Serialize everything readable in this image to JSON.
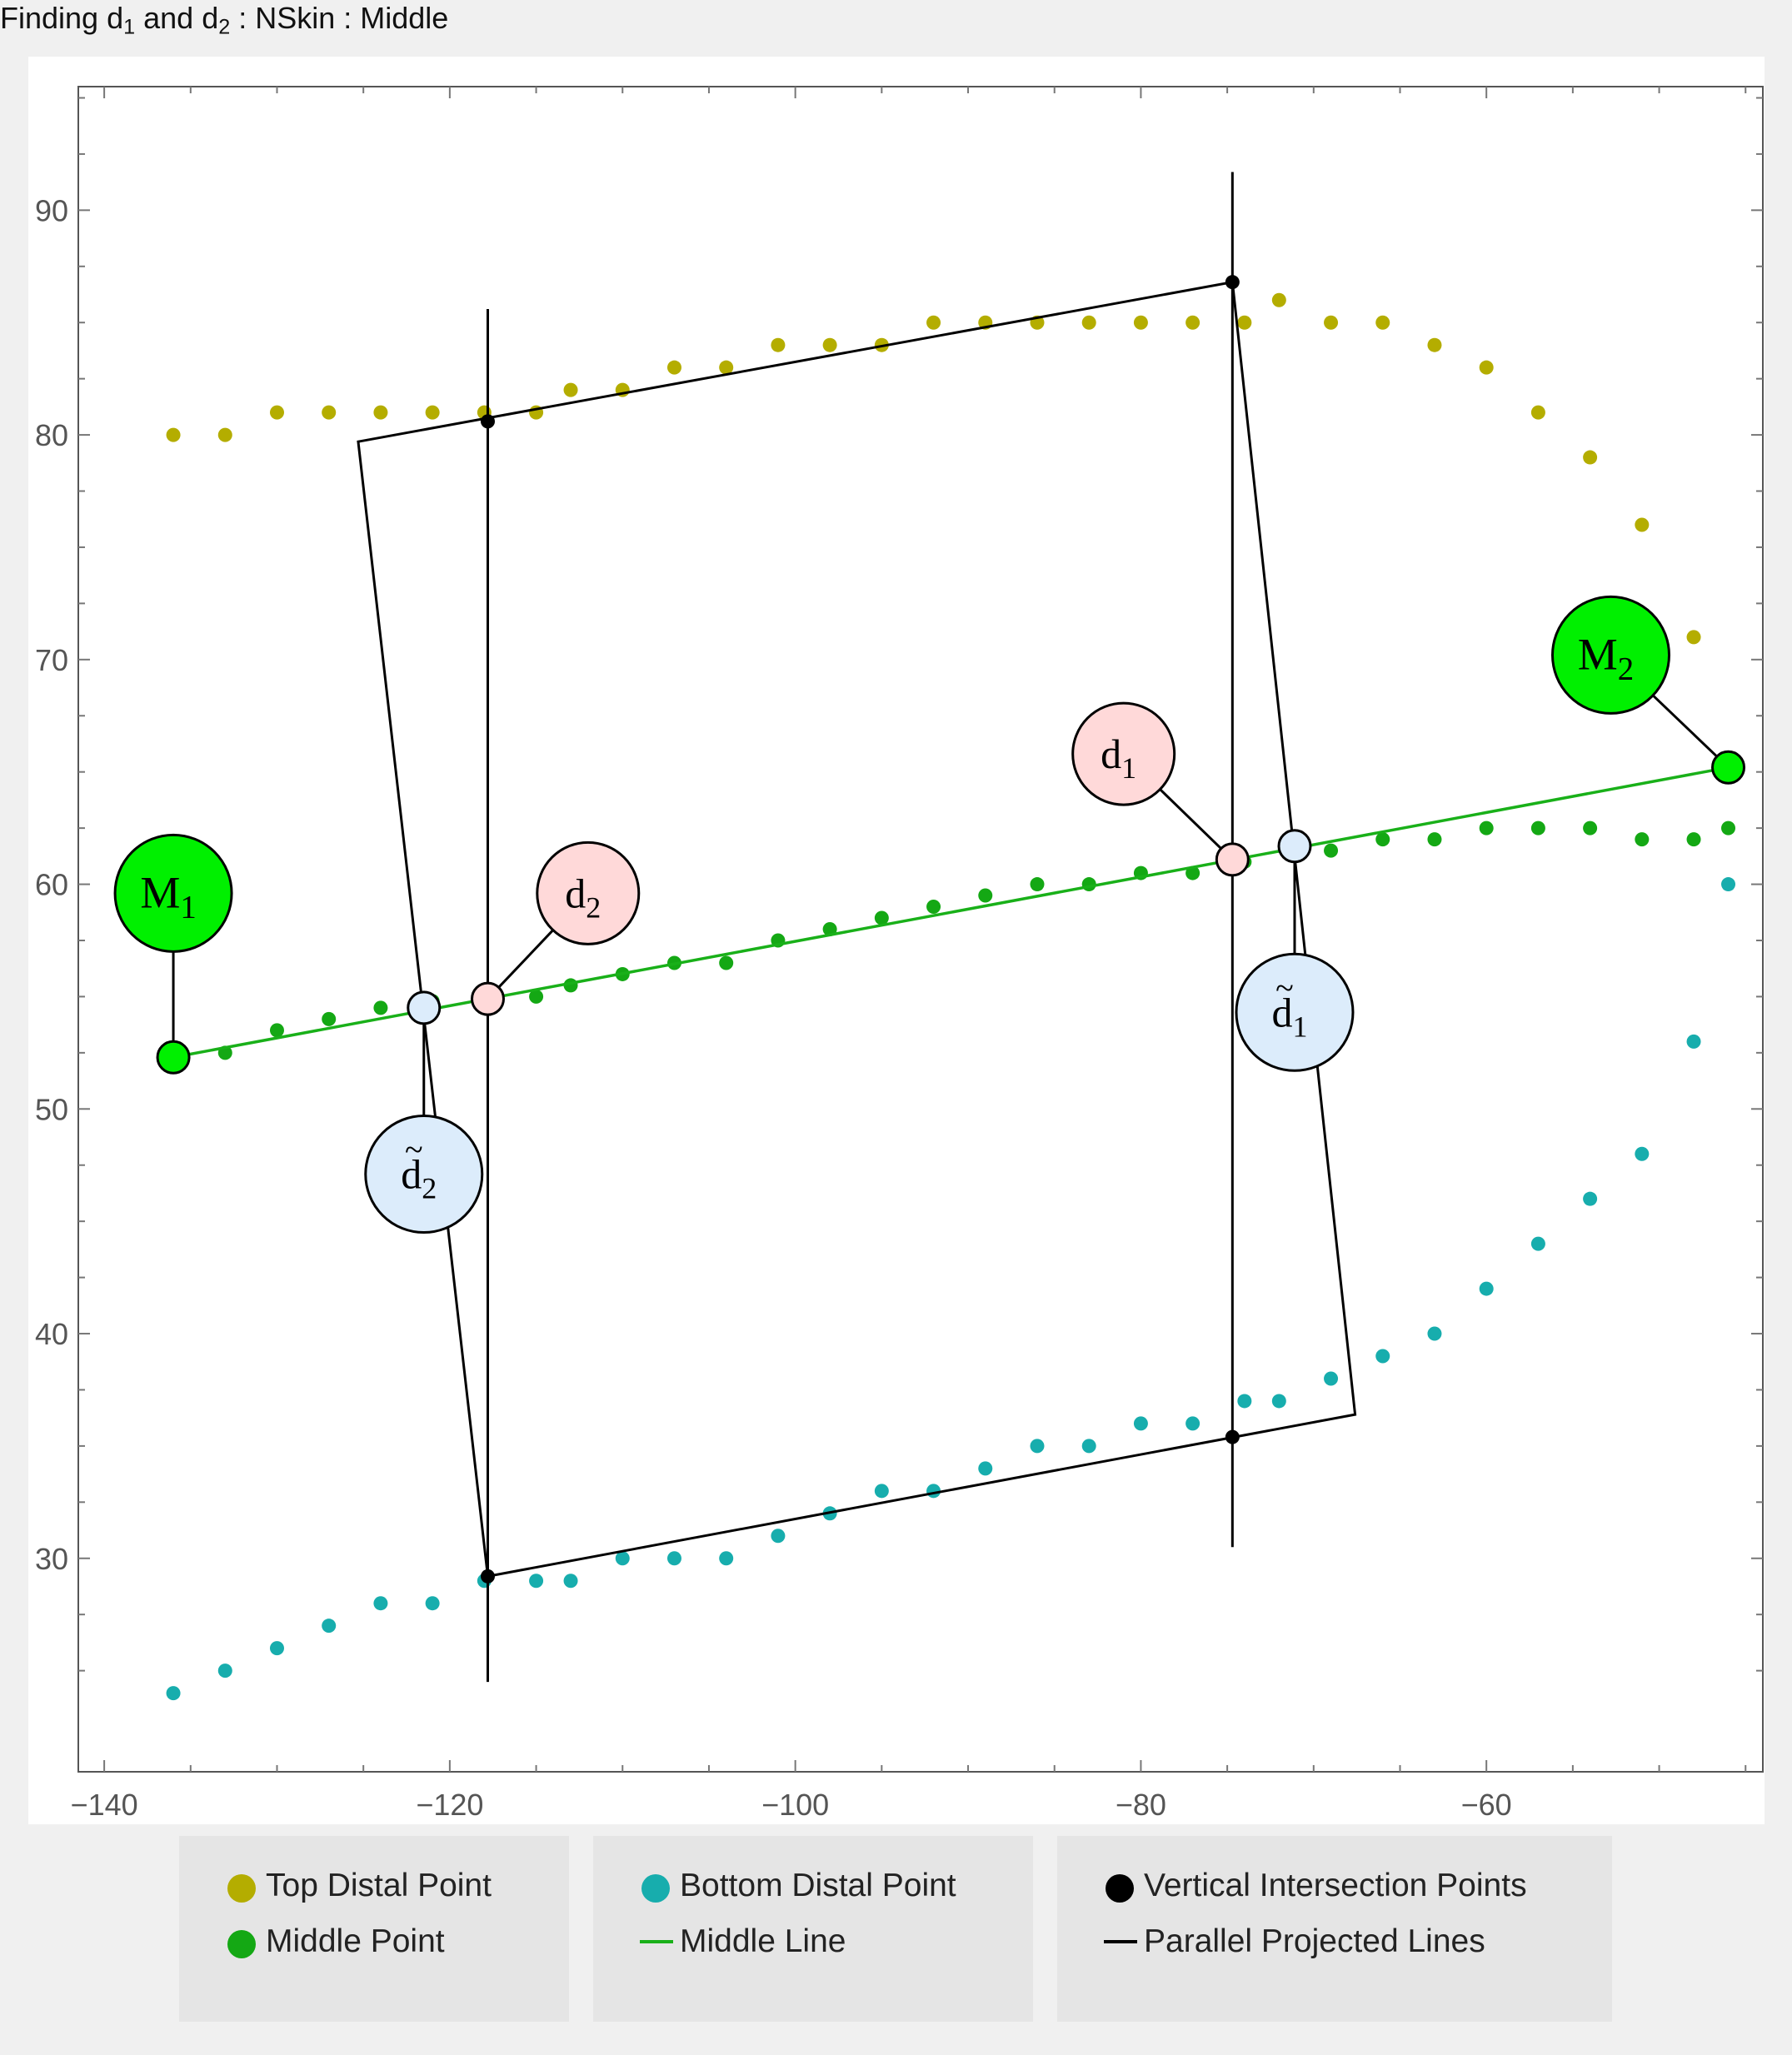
{
  "title": {
    "prefix": "Finding d",
    "sub1": "1",
    "mid": " and d",
    "sub2": "2",
    "suffix": " : NSkin : Middle"
  },
  "colors": {
    "top": "#b4ad00",
    "middle": "#14a814",
    "bottom": "#17adad",
    "vertical": "#000000",
    "middle_line": "#19b019",
    "bubble_green": "#00f000",
    "bubble_pink": "#ffd9d9",
    "bubble_blue": "#dcecfb"
  },
  "chart_data": {
    "type": "scatter",
    "xlim": [
      -141.5,
      -44
    ],
    "ylim": [
      20.5,
      95.5
    ],
    "xticks": [
      -140,
      -120,
      -100,
      -80,
      -60
    ],
    "yticks": [
      30,
      40,
      50,
      60,
      70,
      80,
      90
    ],
    "xtick_labels": [
      "−140",
      "−120",
      "−100",
      "−80",
      "−60"
    ],
    "ytick_labels": [
      "30",
      "40",
      "50",
      "60",
      "70",
      "80",
      "90"
    ],
    "grid": false,
    "series": [
      {
        "name": "Top Distal Point",
        "color": "#b4ad00",
        "points": [
          [
            -136,
            80
          ],
          [
            -133,
            80
          ],
          [
            -130,
            81
          ],
          [
            -127,
            81
          ],
          [
            -124,
            81
          ],
          [
            -121,
            81
          ],
          [
            -118,
            81
          ],
          [
            -115,
            81
          ],
          [
            -113,
            82
          ],
          [
            -110,
            82
          ],
          [
            -107,
            83
          ],
          [
            -104,
            83
          ],
          [
            -101,
            84
          ],
          [
            -98,
            84
          ],
          [
            -95,
            84
          ],
          [
            -92,
            85
          ],
          [
            -89,
            85
          ],
          [
            -86,
            85
          ],
          [
            -83,
            85
          ],
          [
            -80,
            85
          ],
          [
            -77,
            85
          ],
          [
            -74,
            85
          ],
          [
            -72,
            86
          ],
          [
            -69,
            85
          ],
          [
            -66,
            85
          ],
          [
            -63,
            84
          ],
          [
            -60,
            83
          ],
          [
            -57,
            81
          ],
          [
            -54,
            79
          ],
          [
            -51,
            76
          ],
          [
            -48,
            71
          ]
        ]
      },
      {
        "name": "Middle Point",
        "color": "#14a814",
        "points": [
          [
            -133,
            52.5
          ],
          [
            -130,
            53.5
          ],
          [
            -127,
            54
          ],
          [
            -124,
            54.5
          ],
          [
            -121,
            54.8
          ],
          [
            -118,
            55
          ],
          [
            -115,
            55
          ],
          [
            -113,
            55.5
          ],
          [
            -110,
            56
          ],
          [
            -107,
            56.5
          ],
          [
            -104,
            56.5
          ],
          [
            -101,
            57.5
          ],
          [
            -98,
            58
          ],
          [
            -95,
            58.5
          ],
          [
            -92,
            59
          ],
          [
            -89,
            59.5
          ],
          [
            -86,
            60
          ],
          [
            -83,
            60
          ],
          [
            -80,
            60.5
          ],
          [
            -77,
            60.5
          ],
          [
            -74,
            61
          ],
          [
            -69,
            61.5
          ],
          [
            -66,
            62
          ],
          [
            -63,
            62
          ],
          [
            -60,
            62.5
          ],
          [
            -57,
            62.5
          ],
          [
            -54,
            62.5
          ],
          [
            -51,
            62
          ],
          [
            -48,
            62
          ],
          [
            -46,
            62.5
          ]
        ]
      },
      {
        "name": "Bottom Distal Point",
        "color": "#17adad",
        "points": [
          [
            -136,
            24
          ],
          [
            -133,
            25
          ],
          [
            -130,
            26
          ],
          [
            -127,
            27
          ],
          [
            -124,
            28
          ],
          [
            -121,
            28
          ],
          [
            -118,
            29
          ],
          [
            -115,
            29
          ],
          [
            -113,
            29
          ],
          [
            -110,
            30
          ],
          [
            -107,
            30
          ],
          [
            -104,
            30
          ],
          [
            -101,
            31
          ],
          [
            -98,
            32
          ],
          [
            -95,
            33
          ],
          [
            -92,
            33
          ],
          [
            -89,
            34
          ],
          [
            -86,
            35
          ],
          [
            -83,
            35
          ],
          [
            -80,
            36
          ],
          [
            -77,
            36
          ],
          [
            -74,
            37
          ],
          [
            -72,
            37
          ],
          [
            -69,
            38
          ],
          [
            -66,
            39
          ],
          [
            -63,
            40
          ],
          [
            -60,
            42
          ],
          [
            -57,
            44
          ],
          [
            -54,
            46
          ],
          [
            -51,
            48
          ],
          [
            -48,
            53
          ],
          [
            -46,
            60
          ]
        ]
      },
      {
        "name": "Vertical Intersection Points",
        "color": "#000000",
        "points": [
          [
            -117.8,
            80.6
          ],
          [
            -74.7,
            86.8
          ],
          [
            -117.8,
            29.2
          ],
          [
            -74.7,
            35.4
          ]
        ]
      }
    ],
    "middle_line": {
      "name": "Middle Line",
      "from": [
        -136,
        52.3
      ],
      "to": [
        -46,
        65.2
      ]
    },
    "projected_lines": {
      "name": "Parallel Projected Lines",
      "quad": [
        [
          -125.3,
          79.7
        ],
        [
          -74.7,
          86.8
        ],
        [
          -67.6,
          36.4
        ],
        [
          -117.8,
          29.2
        ]
      ],
      "verticals": [
        {
          "x": -117.8,
          "y1": 24.5,
          "y2": 85.6
        },
        {
          "x": -74.7,
          "y1": 30.5,
          "y2": 91.7
        }
      ]
    },
    "markers": [
      {
        "id": "M1",
        "base": "M",
        "sub": "1",
        "tilde": false,
        "kind": "green",
        "pt": [
          -136,
          52.3
        ],
        "label": [
          -136,
          59.6
        ]
      },
      {
        "id": "M2",
        "base": "M",
        "sub": "2",
        "tilde": false,
        "kind": "green",
        "pt": [
          -46,
          65.2
        ],
        "label": [
          -52.8,
          70.2
        ]
      },
      {
        "id": "d1",
        "base": "d",
        "sub": "1",
        "tilde": false,
        "kind": "pink",
        "pt": [
          -74.7,
          61.1
        ],
        "label": [
          -81,
          65.8
        ]
      },
      {
        "id": "d2",
        "base": "d",
        "sub": "2",
        "tilde": false,
        "kind": "pink",
        "pt": [
          -117.8,
          54.9
        ],
        "label": [
          -112,
          59.6
        ]
      },
      {
        "id": "d1-tilde",
        "base": "d",
        "sub": "1",
        "tilde": true,
        "kind": "blue",
        "pt": [
          -71.1,
          61.7
        ],
        "label": [
          -71.1,
          54.3
        ]
      },
      {
        "id": "d2-tilde",
        "base": "d",
        "sub": "2",
        "tilde": true,
        "kind": "blue",
        "pt": [
          -121.5,
          54.5
        ],
        "label": [
          -121.5,
          47.1
        ]
      }
    ]
  },
  "legend": {
    "top_label": "Top Distal Point",
    "middle_label": "Middle Point",
    "bottom_label": "Bottom Distal Point",
    "middle_line_label": "Middle Line",
    "vertical_label": "Vertical Intersection Points",
    "projected_label": "Parallel Projected Lines"
  }
}
